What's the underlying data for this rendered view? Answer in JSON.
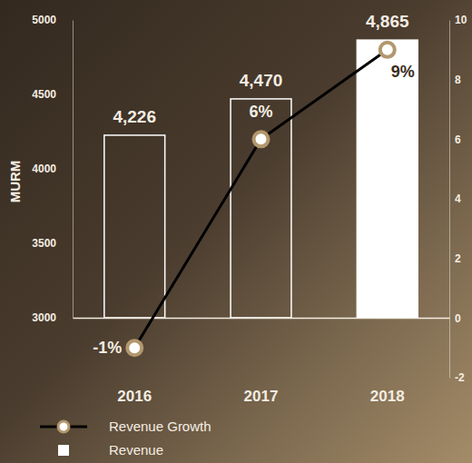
{
  "chart_data": {
    "type": "bar",
    "y_label": "MURM",
    "categories": [
      "2016",
      "2017",
      "2018"
    ],
    "series": [
      {
        "name": "Revenue Growth",
        "type": "line",
        "axis": "y2",
        "color": "#000000",
        "marker": "circle",
        "values": [
          -1,
          6,
          9
        ],
        "value_labels": [
          "-1%",
          "6%",
          "9%"
        ]
      },
      {
        "name": "Revenue",
        "type": "bar",
        "color": "#ffffff",
        "values": [
          4226,
          4470,
          4865
        ],
        "value_labels": [
          "4,226",
          "4,470",
          "4,865"
        ]
      }
    ],
    "ylim": [
      3000,
      5000
    ],
    "yticks": [
      3000,
      3500,
      4000,
      4500,
      5000
    ],
    "y2lim": [
      -2,
      10
    ],
    "y2ticks": [
      -2,
      0,
      2,
      4,
      6,
      8,
      10
    ],
    "data_labels": true,
    "grid": false,
    "legend": "bottom-left"
  }
}
